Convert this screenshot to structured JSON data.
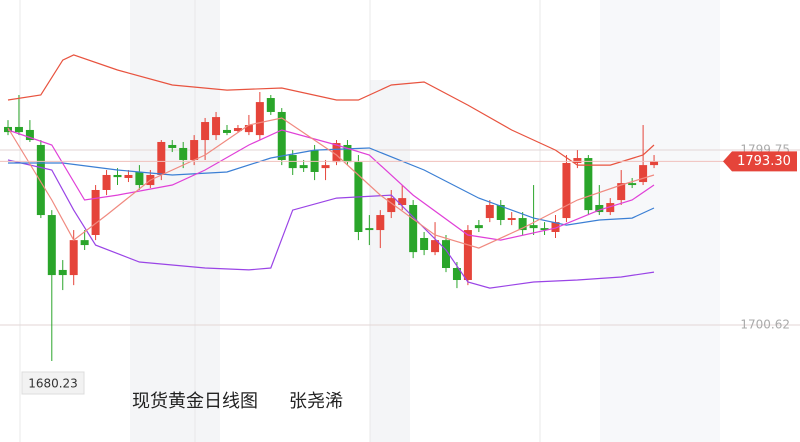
{
  "chart_data": {
    "type": "candlestick",
    "title": "现货黄金日线图",
    "author": "张尧浠",
    "up_color": "#e5443a",
    "down_color": "#2aa52a",
    "ylim": [
      1634.33,
      1884.73
    ],
    "yticks": [
      1799.75,
      1700.62
    ],
    "grid": true,
    "last_price": {
      "value": 1793.3,
      "label": "1793.30"
    },
    "candles": [
      [
        1812.8,
        1816.7,
        1808.2,
        1809.9
      ],
      [
        1812.8,
        1830.9,
        1808.2,
        1809.9
      ],
      [
        1811.1,
        1816.7,
        1804.3,
        1805.4
      ],
      [
        1802.6,
        1805.4,
        1761.2,
        1762.9
      ],
      [
        1762.9,
        1765.7,
        1680.23,
        1728.9
      ],
      [
        1731.8,
        1737.4,
        1720.4,
        1728.9
      ],
      [
        1728.9,
        1754.4,
        1723.2,
        1748.7
      ],
      [
        1748.7,
        1754.4,
        1743.1,
        1745.9
      ],
      [
        1751.6,
        1779.9,
        1748.7,
        1777.1
      ],
      [
        1777.1,
        1788.4,
        1774.2,
        1785.6
      ],
      [
        1785.6,
        1789.5,
        1779.9,
        1784.4
      ],
      [
        1783.9,
        1788.4,
        1781.6,
        1785.6
      ],
      [
        1787.3,
        1791.2,
        1777.1,
        1779.9
      ],
      [
        1779.9,
        1788.4,
        1778.2,
        1785.6
      ],
      [
        1785.6,
        1805.4,
        1782.7,
        1804.3
      ],
      [
        1802.6,
        1805.4,
        1798.6,
        1800.9
      ],
      [
        1800.9,
        1804.3,
        1789.5,
        1794.1
      ],
      [
        1794.1,
        1808.2,
        1791.2,
        1805.4
      ],
      [
        1805.4,
        1817.9,
        1794.1,
        1815.6
      ],
      [
        1808.2,
        1821.3,
        1805.4,
        1818.4
      ],
      [
        1811.1,
        1813.9,
        1808.2,
        1809.4
      ],
      [
        1810.5,
        1813.9,
        1809.4,
        1812.2
      ],
      [
        1809.9,
        1819.6,
        1808.2,
        1813.9
      ],
      [
        1808.2,
        1832.6,
        1805.4,
        1826.9
      ],
      [
        1829.2,
        1830.9,
        1819.6,
        1821.3
      ],
      [
        1821.3,
        1823.5,
        1791.2,
        1794.1
      ],
      [
        1796.9,
        1799.7,
        1785.6,
        1789.5
      ],
      [
        1791.2,
        1794.1,
        1787.3,
        1789.5
      ],
      [
        1799.7,
        1802.6,
        1782.7,
        1787.3
      ],
      [
        1789.5,
        1794.1,
        1782.7,
        1791.2
      ],
      [
        1792.9,
        1805.4,
        1791.2,
        1803.7
      ],
      [
        1802.6,
        1805.4,
        1791.2,
        1792.9
      ],
      [
        1792.9,
        1796.9,
        1748.7,
        1753.3
      ],
      [
        1755.5,
        1762.9,
        1745.9,
        1754.4
      ],
      [
        1754.4,
        1765.7,
        1744.2,
        1762.9
      ],
      [
        1764.6,
        1777.1,
        1761.2,
        1772.5
      ],
      [
        1768.6,
        1779.9,
        1765.7,
        1772.5
      ],
      [
        1768.6,
        1771.4,
        1738.5,
        1741.9
      ],
      [
        1749.9,
        1753.3,
        1740.2,
        1743.1
      ],
      [
        1741.9,
        1758.9,
        1740.2,
        1748.7
      ],
      [
        1748.7,
        1751.6,
        1730.6,
        1732.9
      ],
      [
        1732.9,
        1736.3,
        1721.5,
        1726.1
      ],
      [
        1726.1,
        1757.2,
        1723.2,
        1754.4
      ],
      [
        1757.2,
        1760.1,
        1753.3,
        1755.5
      ],
      [
        1761.2,
        1771.4,
        1758.9,
        1768.6
      ],
      [
        1768.6,
        1771.4,
        1757.2,
        1760.1
      ],
      [
        1760.1,
        1764.6,
        1757.2,
        1761.2
      ],
      [
        1761.2,
        1764.6,
        1751.6,
        1754.4
      ],
      [
        1757.2,
        1779.9,
        1751.6,
        1755.5
      ],
      [
        1755.5,
        1758.9,
        1751.6,
        1754.4
      ],
      [
        1753.3,
        1762.9,
        1749.9,
        1758.9
      ],
      [
        1761.2,
        1796.9,
        1758.9,
        1792.4
      ],
      [
        1792.4,
        1799.7,
        1789.5,
        1795.2
      ],
      [
        1795.2,
        1796.9,
        1762.9,
        1765.7
      ],
      [
        1768.6,
        1779.9,
        1762.9,
        1764.6
      ],
      [
        1764.6,
        1772.5,
        1762.9,
        1769.7
      ],
      [
        1771.4,
        1788.4,
        1768.6,
        1781.0
      ],
      [
        1781.0,
        1783.9,
        1778.2,
        1779.9
      ],
      [
        1781.6,
        1813.9,
        1779.9,
        1791.2
      ],
      [
        1791.2,
        1796.9,
        1789.5,
        1793.3
      ]
    ],
    "lines": [
      {
        "color": "#e8533f",
        "x": [
          0,
          3,
          5,
          6,
          10,
          15,
          20,
          25,
          30,
          32,
          35,
          38,
          42,
          46,
          50,
          52,
          55,
          58,
          59
        ],
        "values": [
          1828.1,
          1830.9,
          1850.7,
          1853.6,
          1845.1,
          1836.6,
          1833.7,
          1834.9,
          1828.1,
          1828.1,
          1836.6,
          1838.3,
          1825.2,
          1811.1,
          1799.7,
          1791.2,
          1791.2,
          1796.9,
          1802.6
        ]
      },
      {
        "color": "#9a44e6",
        "x": [
          0,
          4,
          6,
          8,
          12,
          18,
          22,
          24,
          26,
          30,
          35,
          40,
          42,
          44,
          48,
          52,
          56,
          59
        ],
        "values": [
          1794.1,
          1788.4,
          1765.7,
          1745.9,
          1736.3,
          1732.9,
          1731.8,
          1732.9,
          1765.7,
          1772.5,
          1774.2,
          1743.1,
          1725.0,
          1721.5,
          1725.0,
          1726.1,
          1727.8,
          1730.6
        ]
      },
      {
        "color": "#3b7fd4",
        "x": [
          0,
          5,
          10,
          15,
          20,
          24,
          28,
          33,
          38,
          43,
          48,
          51,
          54,
          57,
          59
        ],
        "values": [
          1792.4,
          1792.4,
          1788.4,
          1785.6,
          1787.3,
          1795.2,
          1799.7,
          1800.9,
          1788.4,
          1772.5,
          1761.2,
          1757.2,
          1760.1,
          1761.2,
          1766.9
        ]
      },
      {
        "color": "#e040d8",
        "x": [
          0,
          4,
          7,
          10,
          15,
          18,
          22,
          25,
          30,
          33,
          37,
          42,
          45,
          50,
          54,
          57,
          59
        ],
        "values": [
          1811.1,
          1802.6,
          1771.4,
          1774.2,
          1779.9,
          1788.4,
          1802.6,
          1811.1,
          1802.6,
          1796.9,
          1774.2,
          1751.6,
          1748.7,
          1755.5,
          1765.7,
          1771.4,
          1779.9
        ]
      },
      {
        "color": "#f08a80",
        "x": [
          0,
          4,
          6,
          9,
          13,
          18,
          22,
          25,
          30,
          34,
          39,
          43,
          47,
          52,
          56,
          59
        ],
        "values": [
          1812.2,
          1771.4,
          1748.7,
          1762.9,
          1782.7,
          1796.9,
          1813.9,
          1817.9,
          1796.9,
          1774.2,
          1751.6,
          1744.2,
          1755.5,
          1771.4,
          1779.9,
          1785.6
        ]
      }
    ]
  }
}
